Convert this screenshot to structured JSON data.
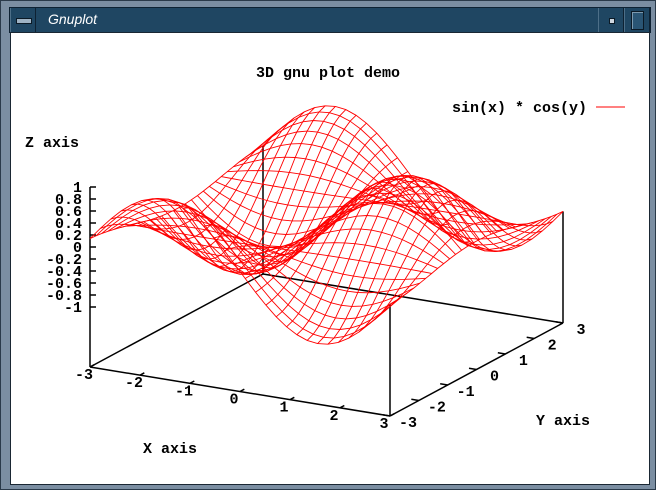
{
  "window": {
    "title": "Gnuplot",
    "icons": [
      "window-menu-icon",
      "minimize-icon",
      "maximize-icon"
    ]
  },
  "chart_data": {
    "type": "surface3d",
    "title": "3D gnu plot demo",
    "function": "sin(x) * cos(y)",
    "legend": {
      "entries": [
        "sin(x) * cos(y)"
      ],
      "placement": "top-right"
    },
    "xlabel": "X axis",
    "ylabel": "Y axis",
    "zlabel": "Z axis",
    "xrange": [
      -3,
      3
    ],
    "yrange": [
      -3,
      3
    ],
    "zrange": [
      -1,
      1
    ],
    "ticslevel_base": -2,
    "isosamples": 30,
    "xticks": [
      "-3",
      "-2",
      "-1",
      "0",
      "1",
      "2",
      "3"
    ],
    "yticks": [
      "-3",
      "-2",
      "-1",
      "0",
      "1",
      "2",
      "3"
    ],
    "zticks": [
      "-1",
      "-0.8",
      "-0.6",
      "-0.4",
      "-0.2",
      "0",
      "0.2",
      "0.4",
      "0.6",
      "0.8",
      "1"
    ],
    "line_color": "#ff0000",
    "grid": false
  }
}
